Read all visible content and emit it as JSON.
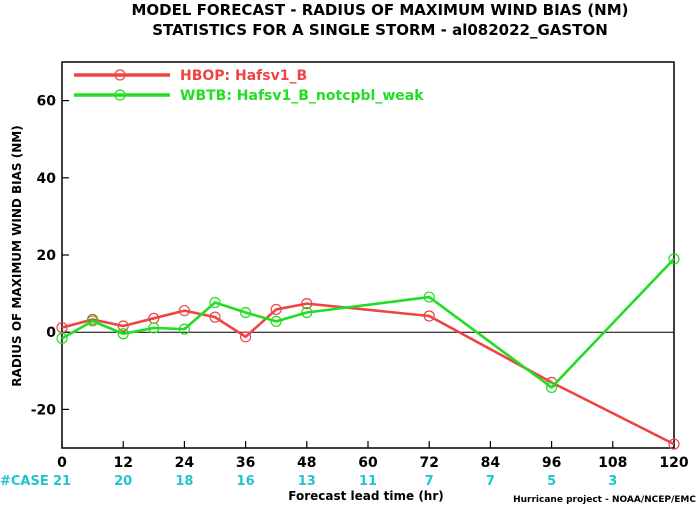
{
  "title_lines": [
    "MODEL FORECAST - RADIUS OF MAXIMUM WIND BIAS (NM)",
    "STATISTICS FOR A SINGLE STORM - al082022_GASTON"
  ],
  "credit": "Hurricane project - NOAA/NCEP/EMC",
  "case_prefix": "#CASE",
  "colors": {
    "red": "#ee4444",
    "green": "#22dd22",
    "case": "#22c4cc",
    "zero": "#000000"
  },
  "chart_data": {
    "type": "line",
    "title": "MODEL FORECAST - RADIUS OF MAXIMUM WIND BIAS (NM)",
    "subtitle": "STATISTICS FOR A SINGLE STORM - al082022_GASTON",
    "xlabel": "Forecast lead time (hr)",
    "ylabel": "RADIUS OF MAXIMUM WIND BIAS (NM)",
    "xlim": [
      0,
      120
    ],
    "ylim": [
      -30,
      70
    ],
    "xticks": [
      0,
      12,
      24,
      36,
      48,
      60,
      72,
      84,
      96,
      108,
      120
    ],
    "yticks": [
      -20,
      0,
      20,
      40,
      60
    ],
    "zero_line": true,
    "legend_position": "top-left",
    "cases": [
      21,
      20,
      18,
      16,
      13,
      11,
      7,
      7,
      5,
      3
    ],
    "case_x": [
      0,
      12,
      24,
      36,
      48,
      60,
      72,
      84,
      96,
      108
    ],
    "series": [
      {
        "name": "HBOP: Hafsv1_B",
        "color": "#ee4444",
        "x": [
          0,
          6,
          12,
          18,
          24,
          30,
          36,
          42,
          48,
          72,
          96,
          120
        ],
        "y": [
          1.2,
          3.3,
          1.6,
          3.6,
          5.6,
          3.9,
          -1.2,
          5.9,
          7.4,
          4.2,
          -13.0,
          -29.0
        ]
      },
      {
        "name": "WBTB: Hafsv1_B_notcpbl_weak",
        "color": "#22dd22",
        "x": [
          0,
          6,
          12,
          18,
          24,
          30,
          36,
          42,
          48,
          72,
          96,
          120
        ],
        "y": [
          -1.6,
          2.9,
          -0.4,
          1.1,
          0.8,
          7.7,
          5.1,
          2.8,
          5.1,
          9.1,
          -14.3,
          19.0
        ]
      }
    ]
  }
}
